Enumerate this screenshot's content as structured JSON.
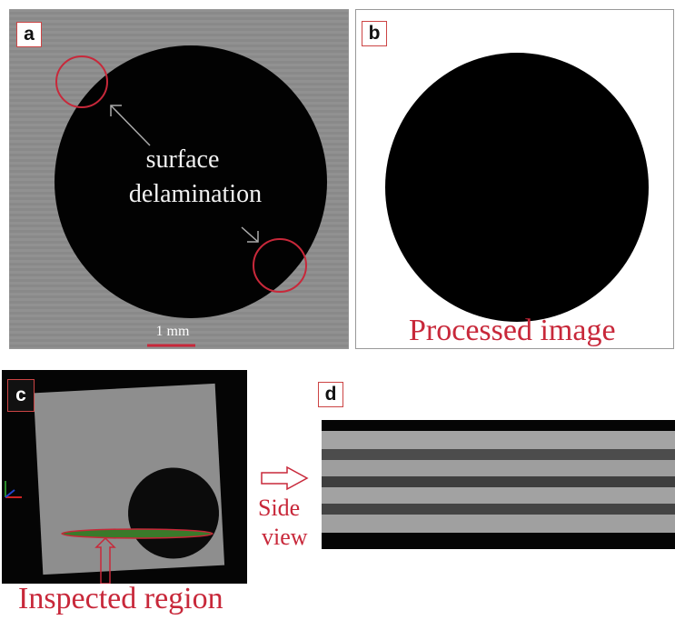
{
  "panels": {
    "a": {
      "label": "a",
      "annotation_line1": "surface",
      "annotation_line2": "delamination",
      "scale_bar": "1 mm"
    },
    "b": {
      "label": "b",
      "caption": "Processed image"
    },
    "c": {
      "label": "c",
      "caption": "Inspected region"
    },
    "d": {
      "label": "d",
      "side_label_line1": "Side",
      "side_label_line2": "view"
    }
  },
  "colors": {
    "annotation_red": "#c8283a",
    "background_gray": "#8c8c8c",
    "hole_black": "#000000"
  }
}
